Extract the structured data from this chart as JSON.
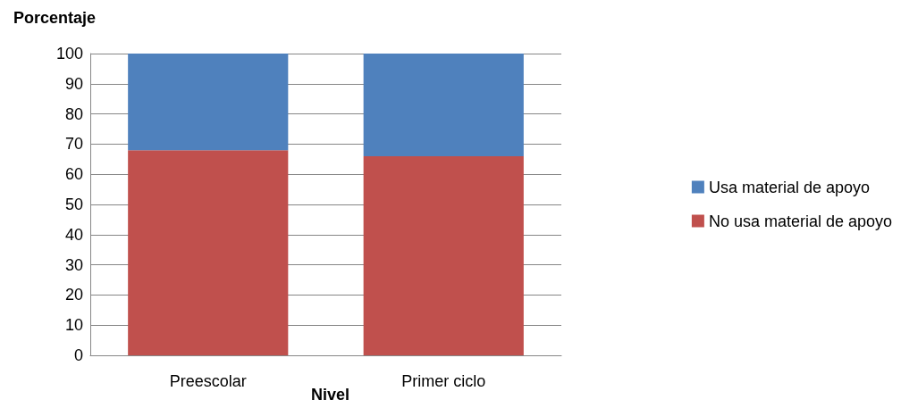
{
  "chart_data": {
    "type": "bar",
    "stacked": true,
    "ylabel": "Porcentaje",
    "xlabel": "Nivel",
    "categories": [
      "Preescolar",
      "Primer ciclo"
    ],
    "series": [
      {
        "name": "No usa material de apoyo",
        "color": "#c0504d",
        "values": [
          68,
          66
        ]
      },
      {
        "name": "Usa material de apoyo",
        "color": "#4f81bd",
        "values": [
          32,
          34
        ]
      }
    ],
    "ylim": [
      0,
      100
    ],
    "yticks": [
      0,
      10,
      20,
      30,
      40,
      50,
      60,
      70,
      80,
      90,
      100
    ],
    "grid": "y",
    "legend": "right"
  }
}
